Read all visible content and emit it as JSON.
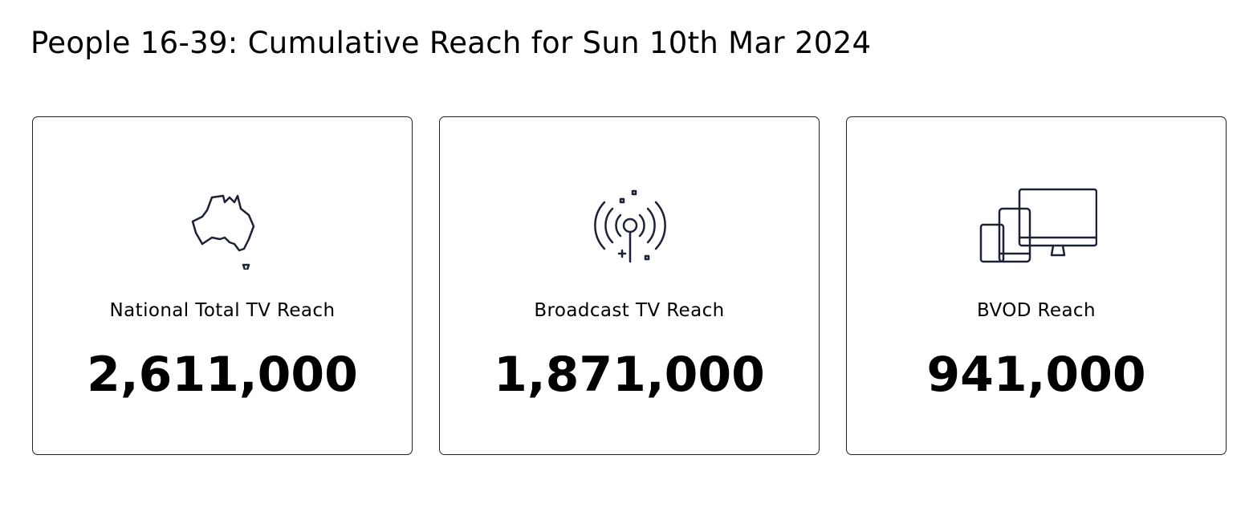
{
  "header": {
    "title": "People 16-39: Cumulative Reach for Sun 10th Mar 2024"
  },
  "cards": [
    {
      "label": "National Total TV Reach",
      "value": "2,611,000"
    },
    {
      "label": "Broadcast TV Reach",
      "value": "1,871,000"
    },
    {
      "label": "BVOD Reach",
      "value": "941,000"
    }
  ]
}
